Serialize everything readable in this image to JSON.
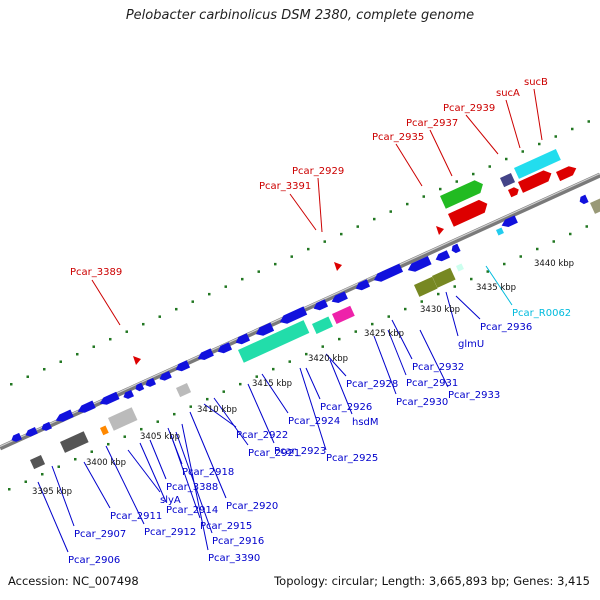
{
  "title": "Pelobacter carbinolicus DSM 2380, complete genome",
  "footer": {
    "accession": "Accession: NC_007498",
    "summary": "Topology: circular; Length: 3,665,893 bp; Genes: 3,415"
  },
  "colors": {
    "forward_label": "#cc0000",
    "reverse_label": "#0000cc",
    "rna_label": "#00bbdd",
    "backbone": "#888888",
    "tick_dots": "#227722"
  },
  "kbp_ticks": [
    "3395 kbp",
    "3400 kbp",
    "3405 kbp",
    "3410 kbp",
    "3415 kbp",
    "3420 kbp",
    "3425 kbp",
    "3430 kbp",
    "3435 kbp",
    "3440 kbp"
  ],
  "forward_labels": [
    "Pcar_3389",
    "Pcar_3391",
    "Pcar_2929",
    "Pcar_2935",
    "Pcar_2937",
    "Pcar_2939",
    "sucA",
    "sucB"
  ],
  "reverse_labels": [
    "Pcar_2906",
    "Pcar_2907",
    "Pcar_2911",
    "Pcar_2912",
    "slyA",
    "Pcar_2914",
    "Pcar_3388",
    "Pcar_2915",
    "Pcar_2916",
    "Pcar_3390",
    "Pcar_2918",
    "Pcar_2920",
    "Pcar_2921",
    "Pcar_2922",
    "Pcar_2923",
    "Pcar_2924",
    "Pcar_2925",
    "hsdM",
    "Pcar_2926",
    "Pcar_2928",
    "Pcar_2930",
    "Pcar_2931",
    "Pcar_2932",
    "Pcar_2933",
    "glmU",
    "Pcar_2936"
  ],
  "rna_labels": [
    "Pcar_R0062"
  ]
}
